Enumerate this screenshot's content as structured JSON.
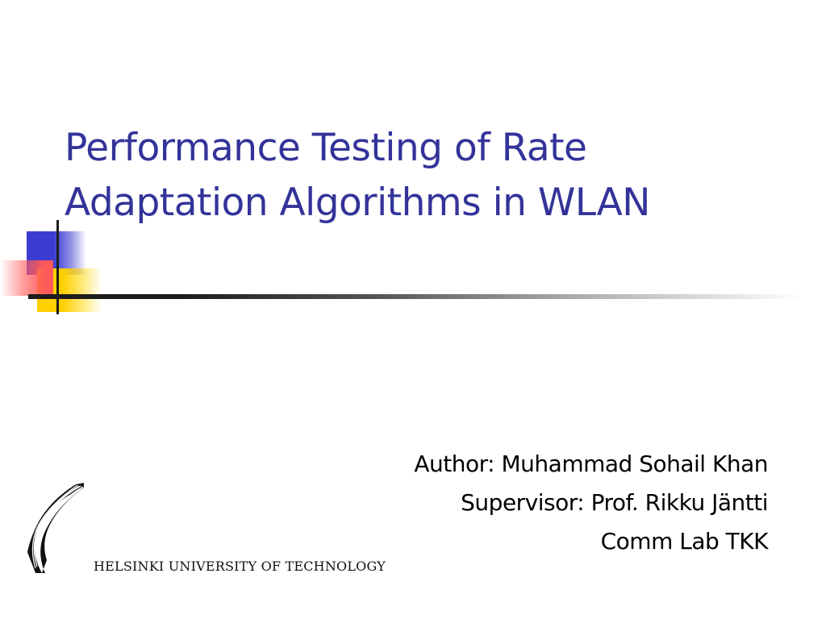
{
  "slide": {
    "title_lines": [
      "Performance Testing of Rate",
      "Adaptation Algorithms in WLAN"
    ],
    "author": "Author: Muhammad Sohail Khan",
    "supervisor": "Supervisor: Prof. Rikku Jäntti",
    "affiliation": "Comm Lab TKK",
    "university": "HELSINKI UNIVERSITY OF TECHNOLOGY",
    "colors": {
      "title": "#33339a",
      "blue_square": "#3c3cd2",
      "yellow_square": "#ffd000",
      "red_square": "#ff5a5a",
      "line": "#1c1c1c"
    },
    "logo_icon": "helsinki-university-logo-icon"
  }
}
